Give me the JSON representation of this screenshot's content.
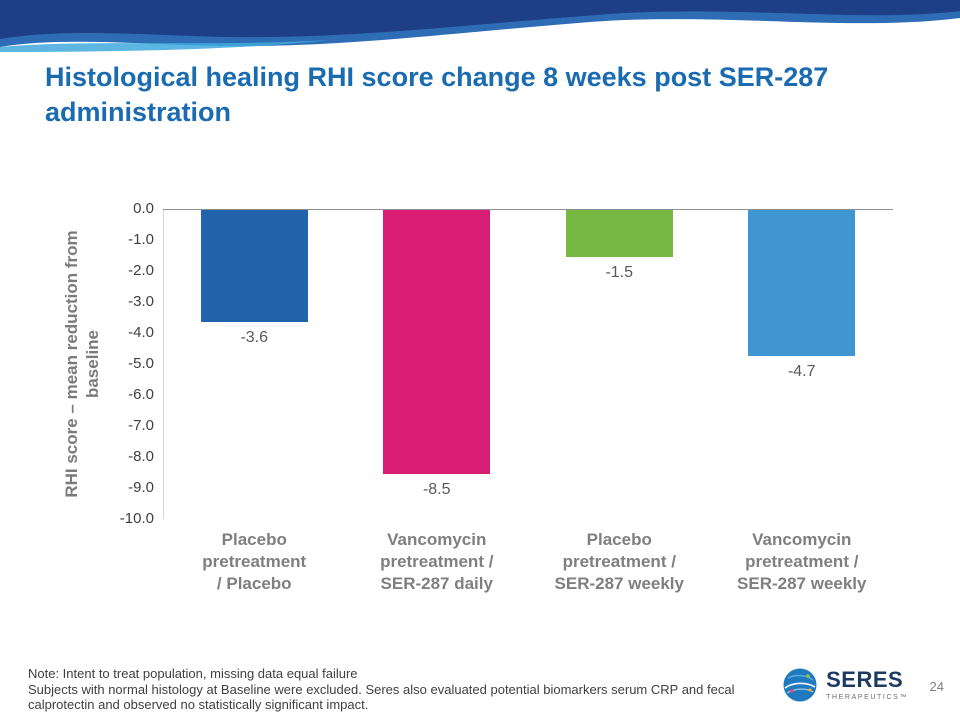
{
  "slide": {
    "title": "Histological healing RHI score change 8 weeks post SER-287 administration",
    "page_number": "24",
    "note_line1": "Note: Intent to treat population, missing data equal failure",
    "note_body": "Subjects with normal histology at Baseline were excluded.  Seres also evaluated potential biomarkers serum CRP and fecal calprotectin and observed no statistically significant impact.",
    "logo": {
      "name": "SERES",
      "subtext": "THERAPEUTICS™"
    },
    "accent_colors": {
      "title_blue": "#1a6bb0",
      "banner_navy": "#1f3e88",
      "banner_blue": "#2e6db6",
      "banner_teal": "#3fa9dc"
    }
  },
  "chart_data": {
    "type": "bar",
    "title": "Histological healing RHI score change 8 weeks post SER-287 administration",
    "categories": [
      "Placebo pretreatment / Placebo",
      "Vancomycin pretreatment / SER-287 daily",
      "Placebo pretreatment / SER-287 weekly",
      "Vancomycin pretreatment / SER-287 weekly"
    ],
    "category_lines": [
      [
        "Placebo",
        "pretreatment",
        "/ Placebo"
      ],
      [
        "Vancomycin",
        "pretreatment /",
        "SER-287 daily"
      ],
      [
        "Placebo",
        "pretreatment /",
        "SER-287 weekly"
      ],
      [
        "Vancomycin",
        "pretreatment /",
        "SER-287 weekly"
      ]
    ],
    "values": [
      -3.6,
      -8.5,
      -1.5,
      -4.7
    ],
    "data_labels": [
      "-3.6",
      "-8.5",
      "-1.5",
      "-4.7"
    ],
    "bar_colors": [
      "#2263ae",
      "#d91d75",
      "#77b843",
      "#3f96d1"
    ],
    "xlabel": "",
    "ylabel": "RHI score – mean reduction from baseline",
    "ylim": [
      -10,
      0
    ],
    "yticks": [
      "0.0",
      "-1.0",
      "-2.0",
      "-3.0",
      "-4.0",
      "-5.0",
      "-6.0",
      "-7.0",
      "-8.0",
      "-9.0",
      "-10.0"
    ],
    "legend": "none",
    "grid": "zero-line-only"
  }
}
